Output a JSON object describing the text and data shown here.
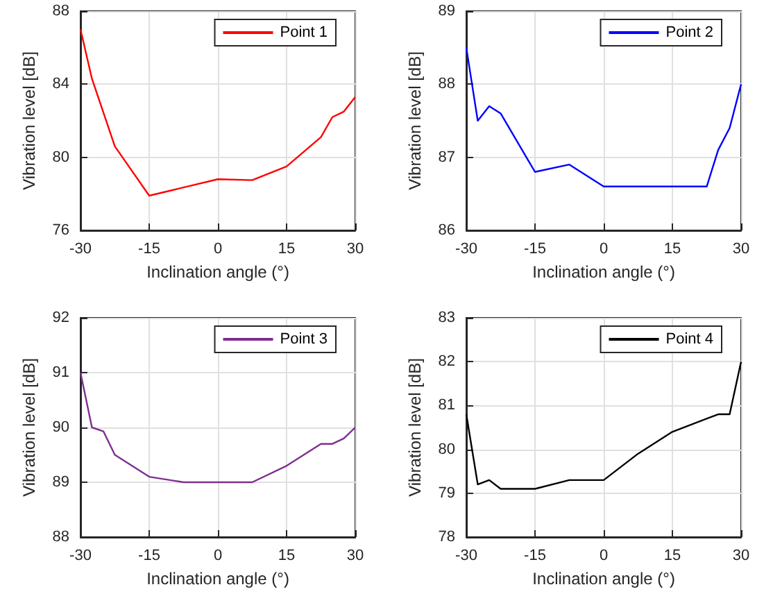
{
  "chart_data": [
    {
      "type": "line",
      "xlabel": "Inclination angle (°)",
      "ylabel": "Vibration level [dB]",
      "x": [
        -30,
        -27.5,
        -22.5,
        -15,
        0,
        7.5,
        15,
        22.5,
        25,
        27.5,
        30
      ],
      "series": [
        {
          "name": "Point 1",
          "color": "#ff0000",
          "values": [
            87.0,
            84.3,
            80.6,
            77.9,
            78.8,
            78.75,
            79.5,
            81.1,
            82.2,
            82.5,
            83.3
          ]
        }
      ],
      "xlim": [
        -30,
        30
      ],
      "xticks": [
        -30,
        -15,
        0,
        15,
        30
      ],
      "ylim": [
        76,
        88
      ],
      "yticks": [
        76,
        80,
        84,
        88
      ],
      "grid": true,
      "legend": "top right"
    },
    {
      "type": "line",
      "xlabel": "Inclination angle (°)",
      "ylabel": "Vibration level [dB]",
      "x": [
        -30,
        -27.5,
        -25,
        -22.5,
        -15,
        -7.5,
        0,
        22.5,
        25,
        27.5,
        30
      ],
      "series": [
        {
          "name": "Point 2",
          "color": "#0000ff",
          "values": [
            88.5,
            87.5,
            87.7,
            87.6,
            86.8,
            86.9,
            86.6,
            86.6,
            87.1,
            87.4,
            88.0
          ]
        }
      ],
      "xlim": [
        -30,
        30
      ],
      "xticks": [
        -30,
        -15,
        0,
        15,
        30
      ],
      "ylim": [
        86,
        89
      ],
      "yticks": [
        86,
        87,
        88,
        89
      ],
      "grid": true,
      "legend": "top right"
    },
    {
      "type": "line",
      "xlabel": "Inclination angle (°)",
      "ylabel": "Vibration level [dB]",
      "x": [
        -30,
        -27.5,
        -25,
        -22.5,
        -15,
        -7.5,
        7.5,
        15,
        22.5,
        25,
        27.5,
        30
      ],
      "series": [
        {
          "name": "Point 3",
          "color": "#7e2f8e",
          "values": [
            91.0,
            90.0,
            89.93,
            89.5,
            89.1,
            89.0,
            89.0,
            89.3,
            89.7,
            89.7,
            89.8,
            90.0
          ]
        }
      ],
      "xlim": [
        -30,
        30
      ],
      "xticks": [
        -30,
        -15,
        0,
        15,
        30
      ],
      "ylim": [
        88,
        92
      ],
      "yticks": [
        88,
        89,
        90,
        91,
        92
      ],
      "grid": true,
      "legend": "top right"
    },
    {
      "type": "line",
      "xlabel": "Inclination angle (°)",
      "ylabel": "Vibration level [dB]",
      "x": [
        -30,
        -27.5,
        -25,
        -22.5,
        -15,
        -7.5,
        0,
        7.5,
        15,
        25,
        27.5,
        30
      ],
      "series": [
        {
          "name": "Point 4",
          "color": "#000000",
          "values": [
            80.8,
            79.2,
            79.3,
            79.1,
            79.1,
            79.3,
            79.3,
            79.9,
            80.4,
            80.8,
            80.8,
            82.0
          ]
        }
      ],
      "xlim": [
        -30,
        30
      ],
      "xticks": [
        -30,
        -15,
        0,
        15,
        30
      ],
      "ylim": [
        78,
        83
      ],
      "yticks": [
        78,
        79,
        80,
        81,
        82,
        83
      ],
      "grid": true,
      "legend": "top right"
    }
  ]
}
